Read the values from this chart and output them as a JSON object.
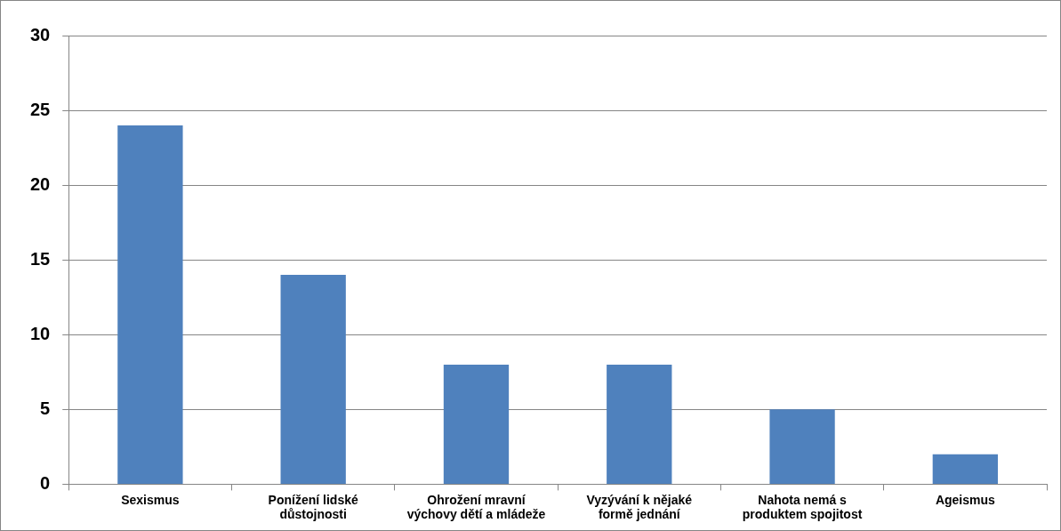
{
  "chart_data": {
    "type": "bar",
    "categories": [
      "Sexismus",
      "Ponížení lidské důstojnosti",
      "Ohrožení mravní výchovy dětí a mládeže",
      "Vyzývání k nějaké formě jednání",
      "Nahota nemá s produktem spojitost",
      "Ageismus"
    ],
    "values": [
      24,
      14,
      8,
      8,
      5,
      2
    ],
    "color": "#4f81bd",
    "ylim": [
      0,
      30
    ],
    "yticks": [
      0,
      5,
      10,
      15,
      20,
      25,
      30
    ],
    "grid": "y",
    "legend": false
  }
}
